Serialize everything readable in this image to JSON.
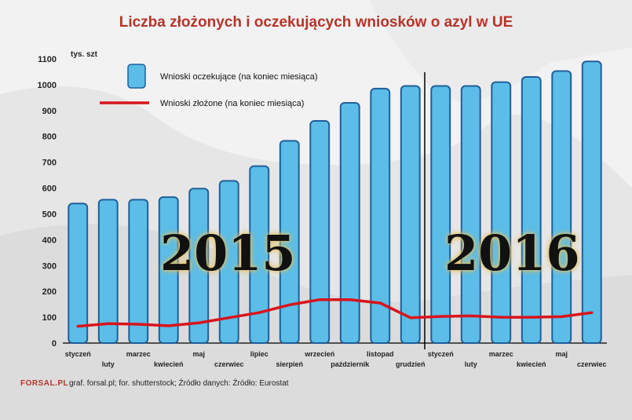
{
  "title": "Liczba złożonych i oczekujących wniosków o azyl w UE",
  "year_labels": [
    "2015",
    "2016"
  ],
  "footnote": "graf. forsal.pl; for. shutterstock;  Źródło danych:  Źródło: Eurostat",
  "logo": "FORSAL.PL",
  "colors": {
    "bar": "#5bbde8",
    "bar_edge": "#1e5f9a",
    "line": "#d9141b",
    "title": "#b5342a"
  },
  "chart_data": {
    "type": "bar",
    "title": "Liczba złożonych i oczekujących wniosków o azyl w UE",
    "ylabel": "tys. szt",
    "ylim": [
      0,
      1100
    ],
    "yticks": [
      0,
      100,
      200,
      300,
      400,
      500,
      600,
      700,
      800,
      900,
      1000,
      1100
    ],
    "categories": [
      "styczeń",
      "luty",
      "marzec",
      "kwiecień",
      "maj",
      "czerwiec",
      "lipiec",
      "sierpień",
      "wrzecień",
      "październik",
      "listopad",
      "grudzień",
      "styczeń",
      "luty",
      "marzec",
      "kwiecień",
      "maj",
      "czerwiec"
    ],
    "series": [
      {
        "name": "Wnioski oczekujące (na koniec miesiąca)",
        "type": "bar",
        "values": [
          540,
          555,
          555,
          565,
          598,
          628,
          685,
          783,
          860,
          930,
          985,
          995,
          995,
          995,
          1010,
          1030,
          1053,
          1090
        ]
      },
      {
        "name": "Wnioski złożone (na koniec miesiąca)",
        "type": "line",
        "values": [
          65,
          75,
          73,
          67,
          78,
          98,
          118,
          148,
          168,
          168,
          155,
          98,
          103,
          105,
          100,
          100,
          102,
          118
        ]
      }
    ],
    "divider_after_category_index": 11,
    "legend_position": "top-left",
    "grid": false
  }
}
